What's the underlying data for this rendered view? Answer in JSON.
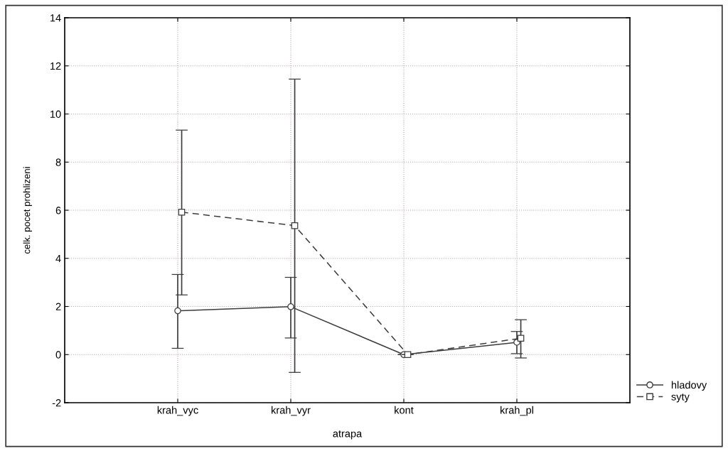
{
  "chart_data": {
    "type": "line",
    "xlabel": "atrapa",
    "ylabel": "celk. pocet prohlizeni",
    "categories": [
      "krah_vyc",
      "krah_vyr",
      "kont",
      "krah_pl"
    ],
    "series": [
      {
        "name": "hladovy",
        "color": "#3c3c3c",
        "marker": "circle",
        "line_style": "solid",
        "values": [
          1.82,
          1.99,
          0,
          0.51
        ],
        "errors": [
          [
            0.26,
            3.33
          ],
          [
            0.69,
            3.21
          ],
          null,
          [
            0.04,
            0.96
          ]
        ]
      },
      {
        "name": "syty",
        "color": "#3c3c3c",
        "marker": "square",
        "line_style": "dashed",
        "values": [
          5.92,
          5.36,
          0,
          0.68
        ],
        "errors": [
          [
            2.48,
            9.33
          ],
          [
            -0.74,
            11.45
          ],
          null,
          [
            -0.14,
            1.45
          ]
        ]
      }
    ],
    "ylim": [
      -2,
      14
    ],
    "yticks": [
      -2,
      0,
      2,
      4,
      6,
      8,
      10,
      12,
      14
    ],
    "grid": true,
    "legend": "bottom right"
  }
}
